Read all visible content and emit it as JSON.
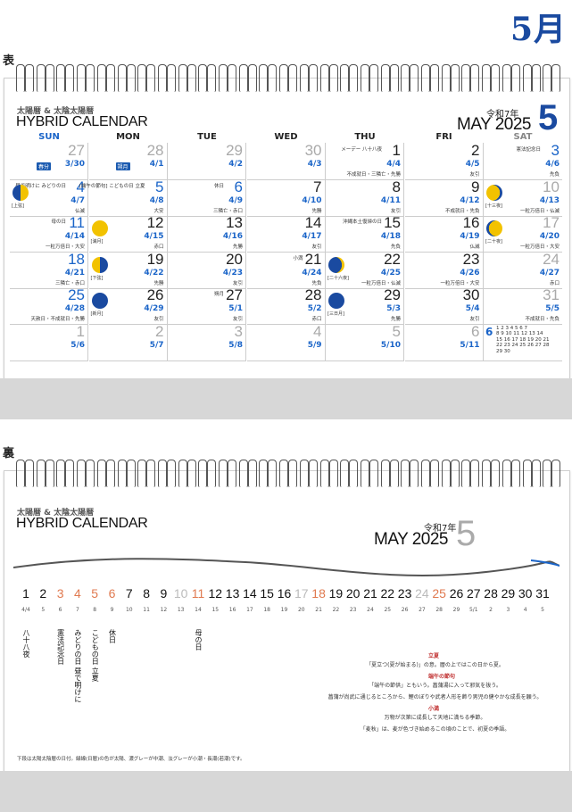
{
  "page": {
    "month_label": "5月",
    "front_label": "表",
    "back_label": "裏"
  },
  "header": {
    "subtitle": "太陽暦 & 太陰太陽暦",
    "title": "HYBRID CALENDAR",
    "era": "令和7年",
    "month_year": "MAY 2025",
    "month_num": "5"
  },
  "weekdays": [
    "SUN",
    "MON",
    "TUE",
    "WED",
    "THU",
    "FRI",
    "SAT"
  ],
  "colors": {
    "accent": "#1a4aa0",
    "sunday": "#1a64c8",
    "tag": "#1a5ab0",
    "highlight": "#f2c200",
    "holiday_back": "#e07a50"
  },
  "weeks": [
    [
      {
        "d": "27",
        "l": "3/30",
        "r": "",
        "note": "",
        "tag": "春分",
        "grey": true
      },
      {
        "d": "28",
        "l": "4/1",
        "r": "",
        "note": "",
        "tag": "朔月",
        "grey": true
      },
      {
        "d": "29",
        "l": "4/2",
        "r": "",
        "grey": true
      },
      {
        "d": "30",
        "l": "4/3",
        "r": "",
        "grey": true
      },
      {
        "d": "1",
        "l": "4/4",
        "r": "不成就日・三隣亡・先勝",
        "note": "メーデー 八十八夜"
      },
      {
        "d": "2",
        "l": "4/5",
        "r": "友引"
      },
      {
        "d": "3",
        "l": "4/6",
        "r": "先負",
        "note": "憲法記念日"
      }
    ],
    [
      {
        "d": "4",
        "l": "4/7",
        "r": "仏滅",
        "note": "昼で明けに みどりの日",
        "moon": "first",
        "mlabel": "[上弦]"
      },
      {
        "d": "5",
        "l": "4/8",
        "r": "大安",
        "note": "[端午の節句] こどもの日 立夏"
      },
      {
        "d": "6",
        "l": "4/9",
        "r": "三隣亡・赤口",
        "note": "休日"
      },
      {
        "d": "7",
        "l": "4/10",
        "r": "先勝"
      },
      {
        "d": "8",
        "l": "4/11",
        "r": "友引"
      },
      {
        "d": "9",
        "l": "4/12",
        "r": "不成就日・先負"
      },
      {
        "d": "10",
        "l": "4/13",
        "r": "一粒万倍日・仏滅",
        "moon": "waxing",
        "mlabel": "[十三夜]",
        "grey": true
      }
    ],
    [
      {
        "d": "11",
        "l": "4/14",
        "r": "一粒万倍日・大安",
        "note": "母の日"
      },
      {
        "d": "12",
        "l": "4/15",
        "r": "赤口",
        "moon": "full",
        "mlabel": "[満月]"
      },
      {
        "d": "13",
        "l": "4/16",
        "r": "先勝"
      },
      {
        "d": "14",
        "l": "4/17",
        "r": "友引"
      },
      {
        "d": "15",
        "l": "4/18",
        "r": "先負",
        "note": "沖縄本土復帰の日"
      },
      {
        "d": "16",
        "l": "4/19",
        "r": "仏滅"
      },
      {
        "d": "17",
        "l": "4/20",
        "r": "一粒万倍日・大安",
        "moon": "waning",
        "mlabel": "[二十夜]",
        "grey": true
      }
    ],
    [
      {
        "d": "18",
        "l": "4/21",
        "r": "三隣亡・赤口"
      },
      {
        "d": "19",
        "l": "4/22",
        "r": "先勝",
        "moon": "last",
        "mlabel": "[下弦]"
      },
      {
        "d": "20",
        "l": "4/23",
        "r": "友引"
      },
      {
        "d": "21",
        "l": "4/24",
        "r": "先負",
        "note": "小満"
      },
      {
        "d": "22",
        "l": "4/25",
        "r": "一粒万倍日・仏滅",
        "moon": "crescent",
        "mlabel": "[二十六夜]"
      },
      {
        "d": "23",
        "l": "4/26",
        "r": "一粒万倍日・大安"
      },
      {
        "d": "24",
        "l": "4/27",
        "r": "赤口",
        "grey": true
      }
    ],
    [
      {
        "d": "25",
        "l": "4/28",
        "r": "天赦日・不成就日・先勝"
      },
      {
        "d": "26",
        "l": "4/29",
        "r": "友引",
        "moon": "new",
        "mlabel": "[新月]"
      },
      {
        "d": "27",
        "l": "5/1",
        "r": "友引",
        "note": "朔月"
      },
      {
        "d": "28",
        "l": "5/2",
        "r": "赤口"
      },
      {
        "d": "29",
        "l": "5/3",
        "r": "先勝",
        "moon": "new2",
        "mlabel": "[三日月]"
      },
      {
        "d": "30",
        "l": "5/4",
        "r": "友引"
      },
      {
        "d": "31",
        "l": "5/5",
        "r": "不成就日・先負",
        "grey": true
      }
    ],
    [
      {
        "d": "1",
        "l": "5/6",
        "r": "",
        "grey": true
      },
      {
        "d": "2",
        "l": "5/7",
        "r": "",
        "grey": true
      },
      {
        "d": "3",
        "l": "5/8",
        "r": "",
        "grey": true
      },
      {
        "d": "4",
        "l": "5/9",
        "r": "",
        "grey": true
      },
      {
        "d": "5",
        "l": "5/10",
        "r": "",
        "grey": true
      },
      {
        "d": "6",
        "l": "5/11",
        "r": "",
        "grey": true
      },
      {
        "d": "mini",
        "l": "",
        "r": ""
      }
    ]
  ],
  "mini_month": {
    "num": "6",
    "rows": [
      "1 2 3 4 5 6 7",
      "8 9 10 11 12 13 14",
      "15 16 17 18 19 20 21",
      "22 23 24 25 26 27 28",
      "29 30"
    ]
  },
  "back": {
    "dates": [
      "1",
      "2",
      "3",
      "4",
      "5",
      "6",
      "7",
      "8",
      "9",
      "10",
      "11",
      "12",
      "13",
      "14",
      "15",
      "16",
      "17",
      "18",
      "19",
      "20",
      "21",
      "22",
      "23",
      "24",
      "25",
      "26",
      "27",
      "28",
      "29",
      "30",
      "31"
    ],
    "lunar": [
      "4/4",
      "5",
      "6",
      "7",
      "8",
      "9",
      "10",
      "11",
      "12",
      "13",
      "14",
      "15",
      "16",
      "17",
      "18",
      "19",
      "20",
      "21",
      "22",
      "23",
      "24",
      "25",
      "26",
      "27",
      "28",
      "29",
      "5/1",
      "2",
      "3",
      "4",
      "5"
    ],
    "dim_days": [
      3,
      10,
      11,
      17,
      18,
      24,
      25
    ],
    "holidays": [
      3,
      4,
      5,
      6,
      11,
      18,
      25
    ],
    "vertical_notes": [
      {
        "day": "1",
        "text": "八十八夜"
      },
      {
        "day": "3",
        "text": "憲法記念日"
      },
      {
        "day": "4",
        "text": "みどりの日 昼で明けに"
      },
      {
        "day": "5",
        "text": "こどもの日 立夏"
      },
      {
        "day": "6",
        "text": "休日"
      },
      {
        "day": "11",
        "text": "母の日"
      }
    ],
    "notes": [
      {
        "head": "立夏",
        "text": "「夏立つ(夏が始まる)」の意。暦の上ではこの日から夏。"
      },
      {
        "head": "端午の節句",
        "text": "「端午の節供」ともいう。菖蒲湯に入って邪気を祓う。"
      },
      {
        "head": "",
        "text": "菖蒲が尚武に通じるところから、鯉のぼりや武者人形を飾り男児の健やかな成長を願う。"
      },
      {
        "head": "小満",
        "text": "万物が次第に成長して天地に満ちる季節。"
      },
      {
        "head": "",
        "text": "「麦秋」は、麦が色づき始めるこの頃のことで、初夏の季語。"
      }
    ],
    "footer": "下段は太陽太陰暦の日付。緑線(日暦)の色が太陽、濃グレーが中潮、淡グレーが小潮・長潮(若潮)です。"
  }
}
